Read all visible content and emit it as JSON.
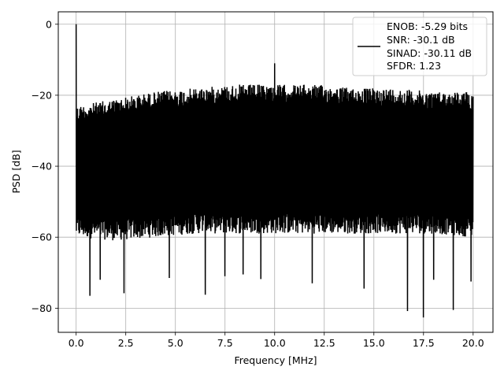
{
  "chart_data": {
    "type": "line",
    "title": "",
    "xlabel": "Frequency [MHz]",
    "ylabel": "PSD [dB]",
    "xlim": [
      -0.9,
      21.0
    ],
    "ylim": [
      -86.8,
      3.5
    ],
    "xticks": [
      0.0,
      2.5,
      5.0,
      7.5,
      10.0,
      12.5,
      15.0,
      17.5,
      20.0
    ],
    "xtick_labels": [
      "0.0",
      "2.5",
      "5.0",
      "7.5",
      "10.0",
      "12.5",
      "15.0",
      "17.5",
      "20.0"
    ],
    "yticks": [
      0,
      -20,
      -40,
      -60,
      -80
    ],
    "ytick_labels": [
      "0",
      "−20",
      "−40",
      "−60",
      "−80"
    ],
    "grid": true,
    "line_color": "#000000",
    "legend_position": "top-right",
    "legend_entries": [
      "ENOB: -5.29 bits",
      "SNR: -30.1 dB",
      "SINAD: -30.11 dB",
      "SFDR: 1.23"
    ],
    "series": [
      {
        "description": "Dense noise floor spectrum from 0 to 20 MHz",
        "x_range": [
          0.0,
          20.0
        ],
        "upper_envelope": {
          "x": [
            0,
            2,
            4,
            6,
            8,
            10,
            12,
            14,
            16,
            18,
            20
          ],
          "y": [
            -23,
            -21,
            -19,
            -18,
            -17,
            -17,
            -17,
            -18,
            -18,
            -19,
            -19
          ]
        },
        "lower_envelope": {
          "x": [
            0,
            2,
            4,
            6,
            8,
            10,
            12,
            14,
            16,
            18,
            20
          ],
          "y": [
            -60,
            -61,
            -60,
            -59,
            -59,
            -59,
            -59,
            -59,
            -59,
            -59,
            -60
          ]
        },
        "peaks": [
          {
            "x": 0.0,
            "y": 0.0
          },
          {
            "x": 10.0,
            "y": -11.0
          }
        ],
        "dips": [
          {
            "x": 0.7,
            "y": -76.5
          },
          {
            "x": 2.4,
            "y": -75.8
          },
          {
            "x": 6.5,
            "y": -76.2
          },
          {
            "x": 16.7,
            "y": -80.8
          },
          {
            "x": 17.5,
            "y": -82.6
          },
          {
            "x": 19.0,
            "y": -80.5
          },
          {
            "x": 1.2,
            "y": -72.0
          },
          {
            "x": 9.3,
            "y": -71.8
          },
          {
            "x": 11.9,
            "y": -73.0
          },
          {
            "x": 14.5,
            "y": -74.5
          },
          {
            "x": 18.0,
            "y": -72.0
          },
          {
            "x": 19.9,
            "y": -72.5
          },
          {
            "x": 4.7,
            "y": -71.5
          },
          {
            "x": 7.5,
            "y": -71.0
          },
          {
            "x": 8.4,
            "y": -70.5
          }
        ]
      }
    ]
  }
}
